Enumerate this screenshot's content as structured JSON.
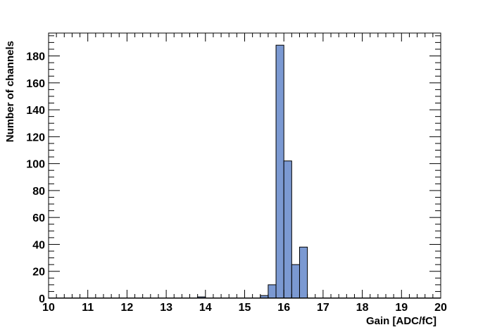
{
  "chart_data": {
    "type": "bar",
    "title": "",
    "xlabel": "Gain [ADC/fC]",
    "ylabel": "Number of channels",
    "xlim": [
      10,
      20
    ],
    "ylim": [
      0,
      197
    ],
    "x_ticks": [
      10,
      11,
      12,
      13,
      14,
      15,
      16,
      17,
      18,
      19,
      20
    ],
    "y_ticks": [
      0,
      20,
      40,
      60,
      80,
      100,
      120,
      140,
      160,
      180
    ],
    "bin_width": 0.2,
    "bin_edges_start": [
      13.8,
      15.4,
      15.6,
      15.8,
      16.0,
      16.2,
      16.4
    ],
    "values": [
      1,
      2,
      10,
      188,
      102,
      25,
      38
    ],
    "fill_color": "#7b99d2",
    "edge_color": "#000000",
    "grid": false,
    "legend": "none"
  }
}
